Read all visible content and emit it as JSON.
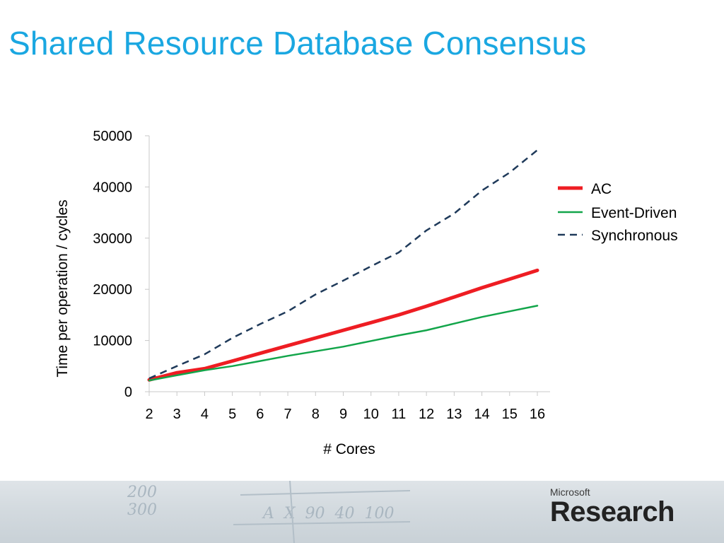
{
  "slide": {
    "title": "Shared Resource Database Consensus",
    "title_color": "#1aa7e1"
  },
  "logo": {
    "line1": "Microsoft",
    "line2": "Research"
  },
  "chart_data": {
    "type": "line",
    "title": "",
    "xlabel": "# Cores",
    "ylabel": "Time per operation / cycles",
    "x": [
      2,
      3,
      4,
      5,
      6,
      7,
      8,
      9,
      10,
      11,
      12,
      13,
      14,
      15,
      16
    ],
    "ylim": [
      0,
      50000
    ],
    "yticks": [
      0,
      10000,
      20000,
      30000,
      40000,
      50000
    ],
    "grid": false,
    "legend_position": "right",
    "series": [
      {
        "name": "AC",
        "color": "#ee1d23",
        "style": "solid-thick",
        "values": [
          2300,
          3700,
          4500,
          6000,
          7500,
          9000,
          10500,
          12000,
          13500,
          15000,
          16700,
          18500,
          20300,
          22000,
          23700
        ]
      },
      {
        "name": "Event-Driven",
        "color": "#12a54a",
        "style": "solid",
        "values": [
          2200,
          3200,
          4200,
          5000,
          6000,
          7000,
          7900,
          8800,
          9900,
          11000,
          12000,
          13300,
          14600,
          15700,
          16800
        ]
      },
      {
        "name": "Synchronous",
        "color": "#1f3a5a",
        "style": "dashed",
        "values": [
          2600,
          5000,
          7300,
          10500,
          13200,
          15700,
          19000,
          21700,
          24500,
          27200,
          31500,
          34800,
          39300,
          42800,
          47200
        ]
      }
    ]
  }
}
